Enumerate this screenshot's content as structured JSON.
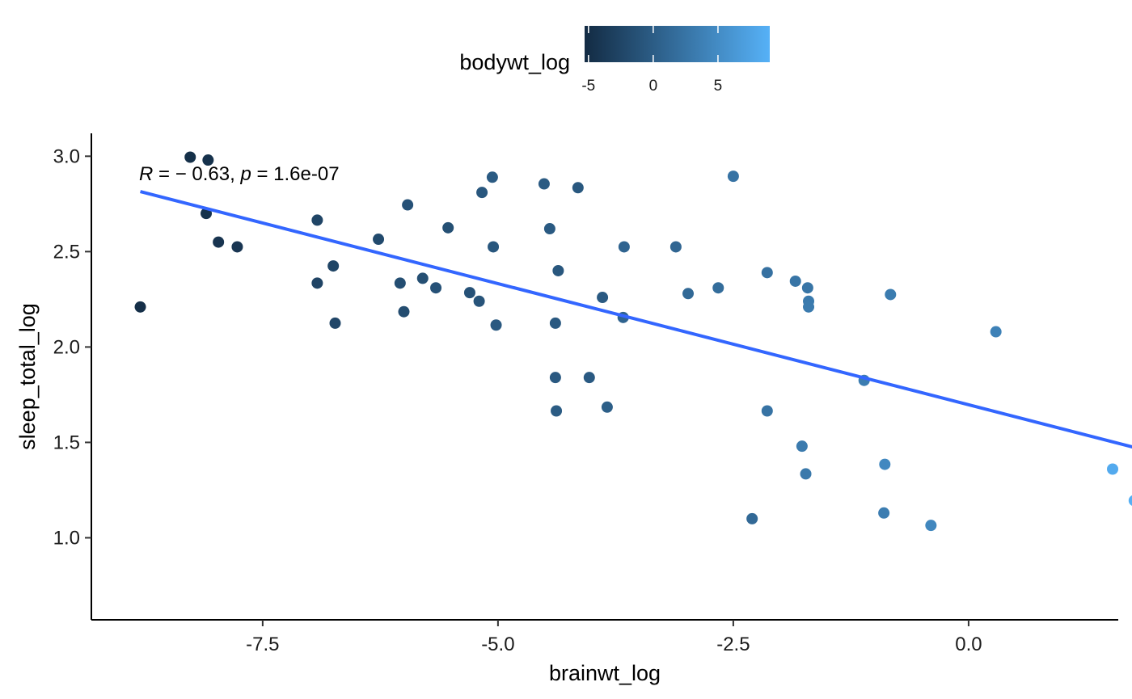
{
  "chart_data": {
    "type": "scatter",
    "xlabel": "brainwt_log",
    "ylabel": "sleep_total_log",
    "xlim": [
      -9.32,
      1.59
    ],
    "ylim": [
      0.57,
      3.12
    ],
    "x_ticks": [
      -7.5,
      -5.0,
      -2.5,
      0.0
    ],
    "x_tick_labels": [
      "-7.5",
      "-5.0",
      "-2.5",
      "0.0"
    ],
    "y_ticks": [
      1.0,
      1.5,
      2.0,
      2.5,
      3.0
    ],
    "y_tick_labels": [
      "1.0",
      "1.5",
      "2.0",
      "2.5",
      "3.0"
    ],
    "grid": false,
    "legend": {
      "title": "bodywt_log",
      "placement": "top",
      "type": "colorbar",
      "range": [
        -5.3,
        9.0
      ],
      "ticks": [
        -5,
        0,
        5
      ],
      "tick_labels": [
        "-5",
        "0",
        "5"
      ],
      "color_low": "#132B43",
      "color_high": "#56B1F7"
    },
    "annotation": {
      "r_symbol": "R",
      "r_text": " = − 0.63, ",
      "p_symbol": "p",
      "p_text": " = 1.6e-07"
    },
    "regression": {
      "color": "#3366FF",
      "x": [
        -8.8,
        1.75
      ],
      "y": [
        2.815,
        1.475
      ]
    },
    "points": [
      {
        "x": -8.8,
        "y": 2.21,
        "c": -4.9
      },
      {
        "x": -8.27,
        "y": 2.995,
        "c": -4.8
      },
      {
        "x": -8.08,
        "y": 2.98,
        "c": -4.6
      },
      {
        "x": -8.1,
        "y": 2.7,
        "c": -4.6
      },
      {
        "x": -7.97,
        "y": 2.55,
        "c": -4.3
      },
      {
        "x": -7.77,
        "y": 2.525,
        "c": -4.1
      },
      {
        "x": -6.92,
        "y": 2.665,
        "c": -2.5
      },
      {
        "x": -6.92,
        "y": 2.335,
        "c": -2.6
      },
      {
        "x": -6.75,
        "y": 2.425,
        "c": -2.5
      },
      {
        "x": -6.73,
        "y": 2.125,
        "c": -2.4
      },
      {
        "x": -6.27,
        "y": 2.565,
        "c": -2.0
      },
      {
        "x": -6.04,
        "y": 2.335,
        "c": -1.6
      },
      {
        "x": -6.0,
        "y": 2.185,
        "c": -1.7
      },
      {
        "x": -5.96,
        "y": 2.745,
        "c": -1.2
      },
      {
        "x": -5.8,
        "y": 2.36,
        "c": -1.5
      },
      {
        "x": -5.66,
        "y": 2.31,
        "c": -1.2
      },
      {
        "x": -5.53,
        "y": 2.625,
        "c": -1.4
      },
      {
        "x": -5.3,
        "y": 2.285,
        "c": -1.2
      },
      {
        "x": -5.2,
        "y": 2.24,
        "c": -0.9
      },
      {
        "x": -5.17,
        "y": 2.81,
        "c": -0.6
      },
      {
        "x": -5.06,
        "y": 2.89,
        "c": -0.2
      },
      {
        "x": -5.05,
        "y": 2.525,
        "c": -0.6
      },
      {
        "x": -5.02,
        "y": 2.115,
        "c": -0.4
      },
      {
        "x": -4.51,
        "y": 2.855,
        "c": -0.2
      },
      {
        "x": -4.45,
        "y": 2.62,
        "c": -0.3
      },
      {
        "x": -4.39,
        "y": 2.125,
        "c": -0.4
      },
      {
        "x": -4.36,
        "y": 2.4,
        "c": -0.6
      },
      {
        "x": -4.39,
        "y": 1.84,
        "c": -0.4
      },
      {
        "x": -4.38,
        "y": 1.665,
        "c": -0.1
      },
      {
        "x": -4.15,
        "y": 2.835,
        "c": -0.5
      },
      {
        "x": -4.03,
        "y": 1.84,
        "c": -0.3
      },
      {
        "x": -3.89,
        "y": 2.26,
        "c": -0.3
      },
      {
        "x": -3.84,
        "y": 1.685,
        "c": 0.2
      },
      {
        "x": -3.66,
        "y": 2.525,
        "c": 0.8
      },
      {
        "x": -3.67,
        "y": 2.155,
        "c": 0.7
      },
      {
        "x": -3.11,
        "y": 2.525,
        "c": 1.0
      },
      {
        "x": -2.98,
        "y": 2.28,
        "c": 1.3
      },
      {
        "x": -2.66,
        "y": 2.31,
        "c": 1.7
      },
      {
        "x": -2.5,
        "y": 2.895,
        "c": 2.4
      },
      {
        "x": -2.3,
        "y": 1.1,
        "c": 1.3
      },
      {
        "x": -2.14,
        "y": 2.39,
        "c": 2.2
      },
      {
        "x": -2.14,
        "y": 1.665,
        "c": 2.4
      },
      {
        "x": -1.84,
        "y": 2.345,
        "c": 2.6
      },
      {
        "x": -1.77,
        "y": 1.48,
        "c": 3.2
      },
      {
        "x": -1.73,
        "y": 1.335,
        "c": 3.0
      },
      {
        "x": -1.71,
        "y": 2.31,
        "c": 2.6
      },
      {
        "x": -1.7,
        "y": 2.24,
        "c": 3.1
      },
      {
        "x": -1.7,
        "y": 2.21,
        "c": 3.2
      },
      {
        "x": -1.11,
        "y": 1.825,
        "c": 3.4
      },
      {
        "x": -0.89,
        "y": 1.385,
        "c": 4.6
      },
      {
        "x": -0.9,
        "y": 1.13,
        "c": 3.4
      },
      {
        "x": -0.83,
        "y": 2.275,
        "c": 3.3
      },
      {
        "x": -0.4,
        "y": 1.065,
        "c": 4.5
      },
      {
        "x": 0.29,
        "y": 2.08,
        "c": 3.9
      },
      {
        "x": 1.53,
        "y": 1.36,
        "c": 8.3
      },
      {
        "x": 1.76,
        "y": 1.195,
        "c": 8.8
      }
    ]
  }
}
